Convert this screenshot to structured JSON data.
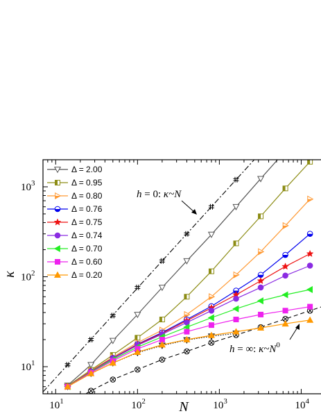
{
  "chart_data": {
    "type": "line",
    "xscale": "log",
    "yscale": "log",
    "xlim": [
      7,
      20000
    ],
    "ylim": [
      5,
      2000
    ],
    "xlabel": "N",
    "ylabel": "κ",
    "x_ticks": [
      {
        "value": 10,
        "base": "10",
        "exp": "1"
      },
      {
        "value": 100,
        "base": "10",
        "exp": "2"
      },
      {
        "value": 1000,
        "base": "10",
        "exp": "3"
      },
      {
        "value": 10000,
        "base": "10",
        "exp": "4"
      }
    ],
    "y_ticks": [
      {
        "value": 10,
        "base": "10",
        "exp": "1"
      },
      {
        "value": 100,
        "base": "10",
        "exp": "2"
      },
      {
        "value": 1000,
        "base": "10",
        "exp": "3"
      }
    ],
    "legend_position": "top-left",
    "series": [
      {
        "name": "Δ = 2.00",
        "color": "#555555",
        "marker": "triangle-down-open",
        "x": [
          14,
          27,
          50,
          100,
          200,
          400,
          800,
          1600,
          3200,
          6400
        ],
        "y": [
          6.2,
          10.5,
          19.5,
          38,
          76,
          150,
          295,
          600,
          1230,
          2500
        ]
      },
      {
        "name": "Δ = 0.95",
        "color": "#8c8c14",
        "marker": "square-half",
        "x": [
          14,
          27,
          50,
          100,
          200,
          400,
          800,
          1600,
          3200,
          6400,
          12800
        ],
        "y": [
          6.1,
          9.2,
          13.5,
          21,
          33.5,
          60,
          115,
          235,
          470,
          960,
          1900
        ]
      },
      {
        "name": "Δ = 0.80",
        "color": "#ff9933",
        "marker": "triangle-right-half",
        "x": [
          14,
          27,
          50,
          100,
          200,
          400,
          800,
          1600,
          3200,
          6400,
          12800
        ],
        "y": [
          6.0,
          9.0,
          12.8,
          18.5,
          25.5,
          38,
          60,
          105,
          190,
          370,
          730
        ]
      },
      {
        "name": "Δ = 0.76",
        "color": "#0000ee",
        "marker": "circle-half",
        "x": [
          14,
          27,
          50,
          100,
          200,
          400,
          800,
          1600,
          3200,
          6400,
          12800
        ],
        "y": [
          6.0,
          8.9,
          12.5,
          17.8,
          24,
          33.5,
          47,
          70,
          105,
          175,
          300
        ]
      },
      {
        "name": "Δ = 0.75",
        "color": "#ee1111",
        "marker": "star",
        "x": [
          14,
          27,
          50,
          100,
          200,
          400,
          800,
          1600,
          3200,
          6400,
          12800
        ],
        "y": [
          6.0,
          8.9,
          12.4,
          17.6,
          23.5,
          32.5,
          45,
          63,
          90,
          130,
          180
        ]
      },
      {
        "name": "Δ = 0.74",
        "color": "#8a2be2",
        "marker": "circle",
        "x": [
          14,
          27,
          50,
          100,
          200,
          400,
          800,
          1600,
          3200,
          6400,
          12800
        ],
        "y": [
          6.0,
          8.8,
          12.3,
          17.3,
          23,
          31,
          42,
          57,
          76,
          103,
          133
        ]
      },
      {
        "name": "Δ = 0.70",
        "color": "#22ee22",
        "marker": "triangle-left",
        "x": [
          14,
          27,
          50,
          100,
          200,
          400,
          800,
          1600,
          3200,
          6400,
          12800
        ],
        "y": [
          6.0,
          8.7,
          12.0,
          16.5,
          21.5,
          27.5,
          35,
          44,
          54,
          63,
          72
        ]
      },
      {
        "name": "Δ = 0.60",
        "color": "#ee22ee",
        "marker": "square",
        "x": [
          14,
          27,
          50,
          100,
          200,
          400,
          800,
          1600,
          3200,
          6400,
          12800
        ],
        "y": [
          6.0,
          8.6,
          11.6,
          15.8,
          20,
          24.5,
          29,
          33.5,
          38,
          42,
          46.5
        ]
      },
      {
        "name": "Δ = 0.20",
        "color": "#ff9900",
        "marker": "triangle-up",
        "x": [
          14,
          27,
          50,
          100,
          200,
          400,
          800,
          1600,
          3200,
          6400,
          12800
        ],
        "y": [
          6.0,
          8.4,
          11.0,
          14.5,
          17.5,
          20,
          22.3,
          24.5,
          27,
          30,
          33
        ]
      }
    ],
    "reference_lines": [
      {
        "id": "h0",
        "style": "dashdot",
        "marker": "hash",
        "x": [
          14,
          27,
          50,
          100,
          200,
          400,
          800,
          1600
        ],
        "y": [
          10.5,
          20,
          37,
          76,
          150,
          300,
          600,
          1200
        ]
      },
      {
        "id": "hinf-dotted",
        "style": "dotted",
        "marker": "triangle-down-open",
        "x": [
          14,
          27,
          50,
          100,
          200,
          400,
          800,
          1600
        ],
        "y": [
          6.0,
          8.4,
          11.0,
          14.3,
          17.2,
          19.8,
          21.8,
          23.5
        ]
      },
      {
        "id": "hinf",
        "style": "dashed",
        "marker": "circle-x",
        "x": [
          27,
          50,
          100,
          200,
          400,
          800,
          1600,
          3200,
          6400,
          12800
        ],
        "y": [
          5.4,
          7.2,
          9.3,
          12,
          14.8,
          18.5,
          22.5,
          27.5,
          34,
          42
        ]
      }
    ],
    "annotations": [
      {
        "id": "h0-label",
        "text_pre": "h",
        "text_mid": " = 0: ",
        "text_k": "κ",
        "text_post": "~N"
      },
      {
        "id": "hinf-label",
        "text_pre": "h",
        "text_mid": " = ∞: ",
        "text_k": "κ",
        "text_post": "~N",
        "text_sup": "0"
      }
    ]
  }
}
